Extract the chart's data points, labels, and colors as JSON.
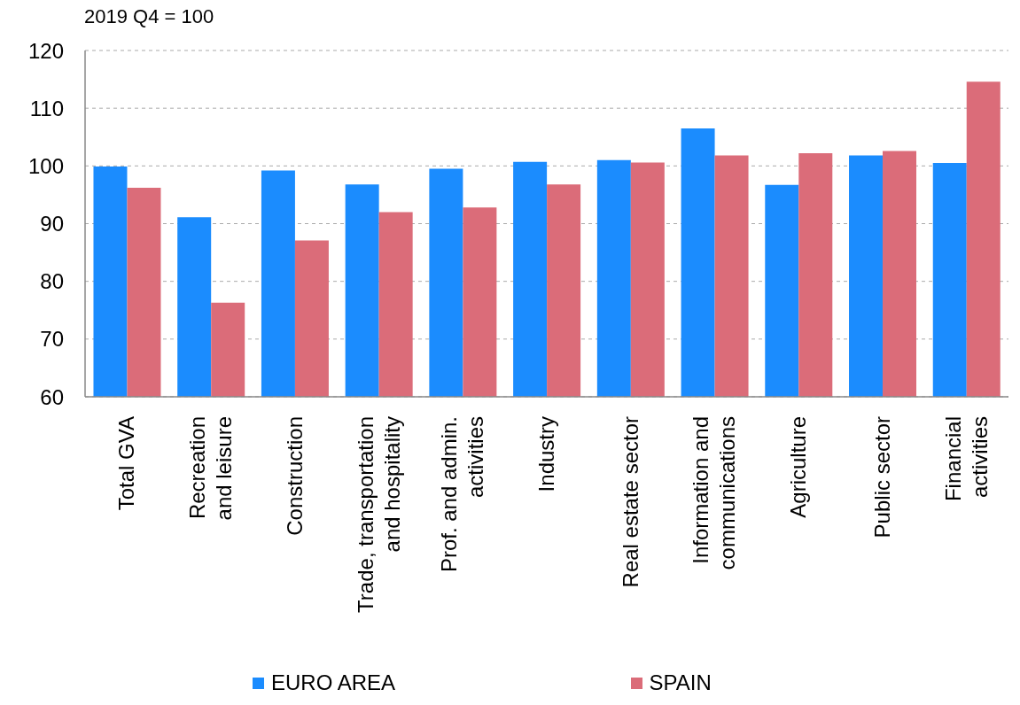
{
  "chart_data": {
    "type": "bar",
    "ylabel": "2019 Q4 = 100",
    "categories": [
      "Total GVA",
      "Recreation and leisure",
      "Construction",
      "Trade, transportation and hospitality",
      "Prof. and admin. activities",
      "Industry",
      "Real estate sector",
      "Information and communications",
      "Agriculture",
      "Public sector",
      "Financial activities"
    ],
    "series": [
      {
        "name": "EURO AREA",
        "color": "#1b8cfe",
        "values": [
          99.9,
          91.1,
          99.2,
          96.8,
          99.5,
          100.7,
          101.0,
          106.5,
          96.7,
          101.8,
          100.5
        ]
      },
      {
        "name": "SPAIN",
        "color": "#db6c79",
        "values": [
          96.2,
          76.3,
          87.1,
          92.0,
          92.8,
          96.8,
          100.6,
          101.8,
          102.2,
          102.6,
          114.6
        ]
      }
    ],
    "ylim": [
      60,
      120
    ],
    "yticks": [
      60,
      70,
      80,
      90,
      100,
      110,
      120
    ],
    "grid": "y",
    "legend": "bottom"
  }
}
